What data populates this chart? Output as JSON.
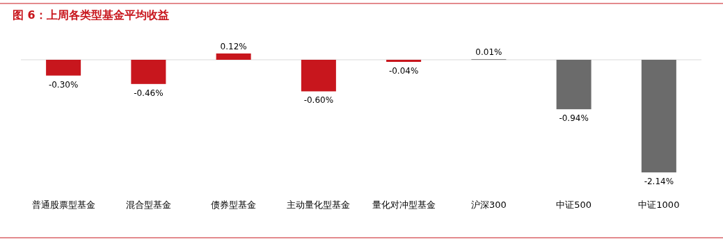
{
  "chart_data": {
    "type": "bar",
    "title": "图 6：上周各类型基金平均收益",
    "categories": [
      "普通股票型基金",
      "混合型基金",
      "债券型基金",
      "主动量化型基金",
      "量化对冲型基金",
      "沪深300",
      "中证500",
      "中证1000"
    ],
    "values": [
      -0.3,
      -0.46,
      0.12,
      -0.6,
      -0.04,
      0.01,
      -0.94,
      -2.14
    ],
    "value_labels": [
      "-0.30%",
      "-0.46%",
      "0.12%",
      "-0.60%",
      "-0.04%",
      "0.01%",
      "-0.94%",
      "-2.14%"
    ],
    "colors": [
      "#c8161d",
      "#c8161d",
      "#c8161d",
      "#c8161d",
      "#c8161d",
      "#6b6b6b",
      "#6b6b6b",
      "#6b6b6b"
    ]
  }
}
